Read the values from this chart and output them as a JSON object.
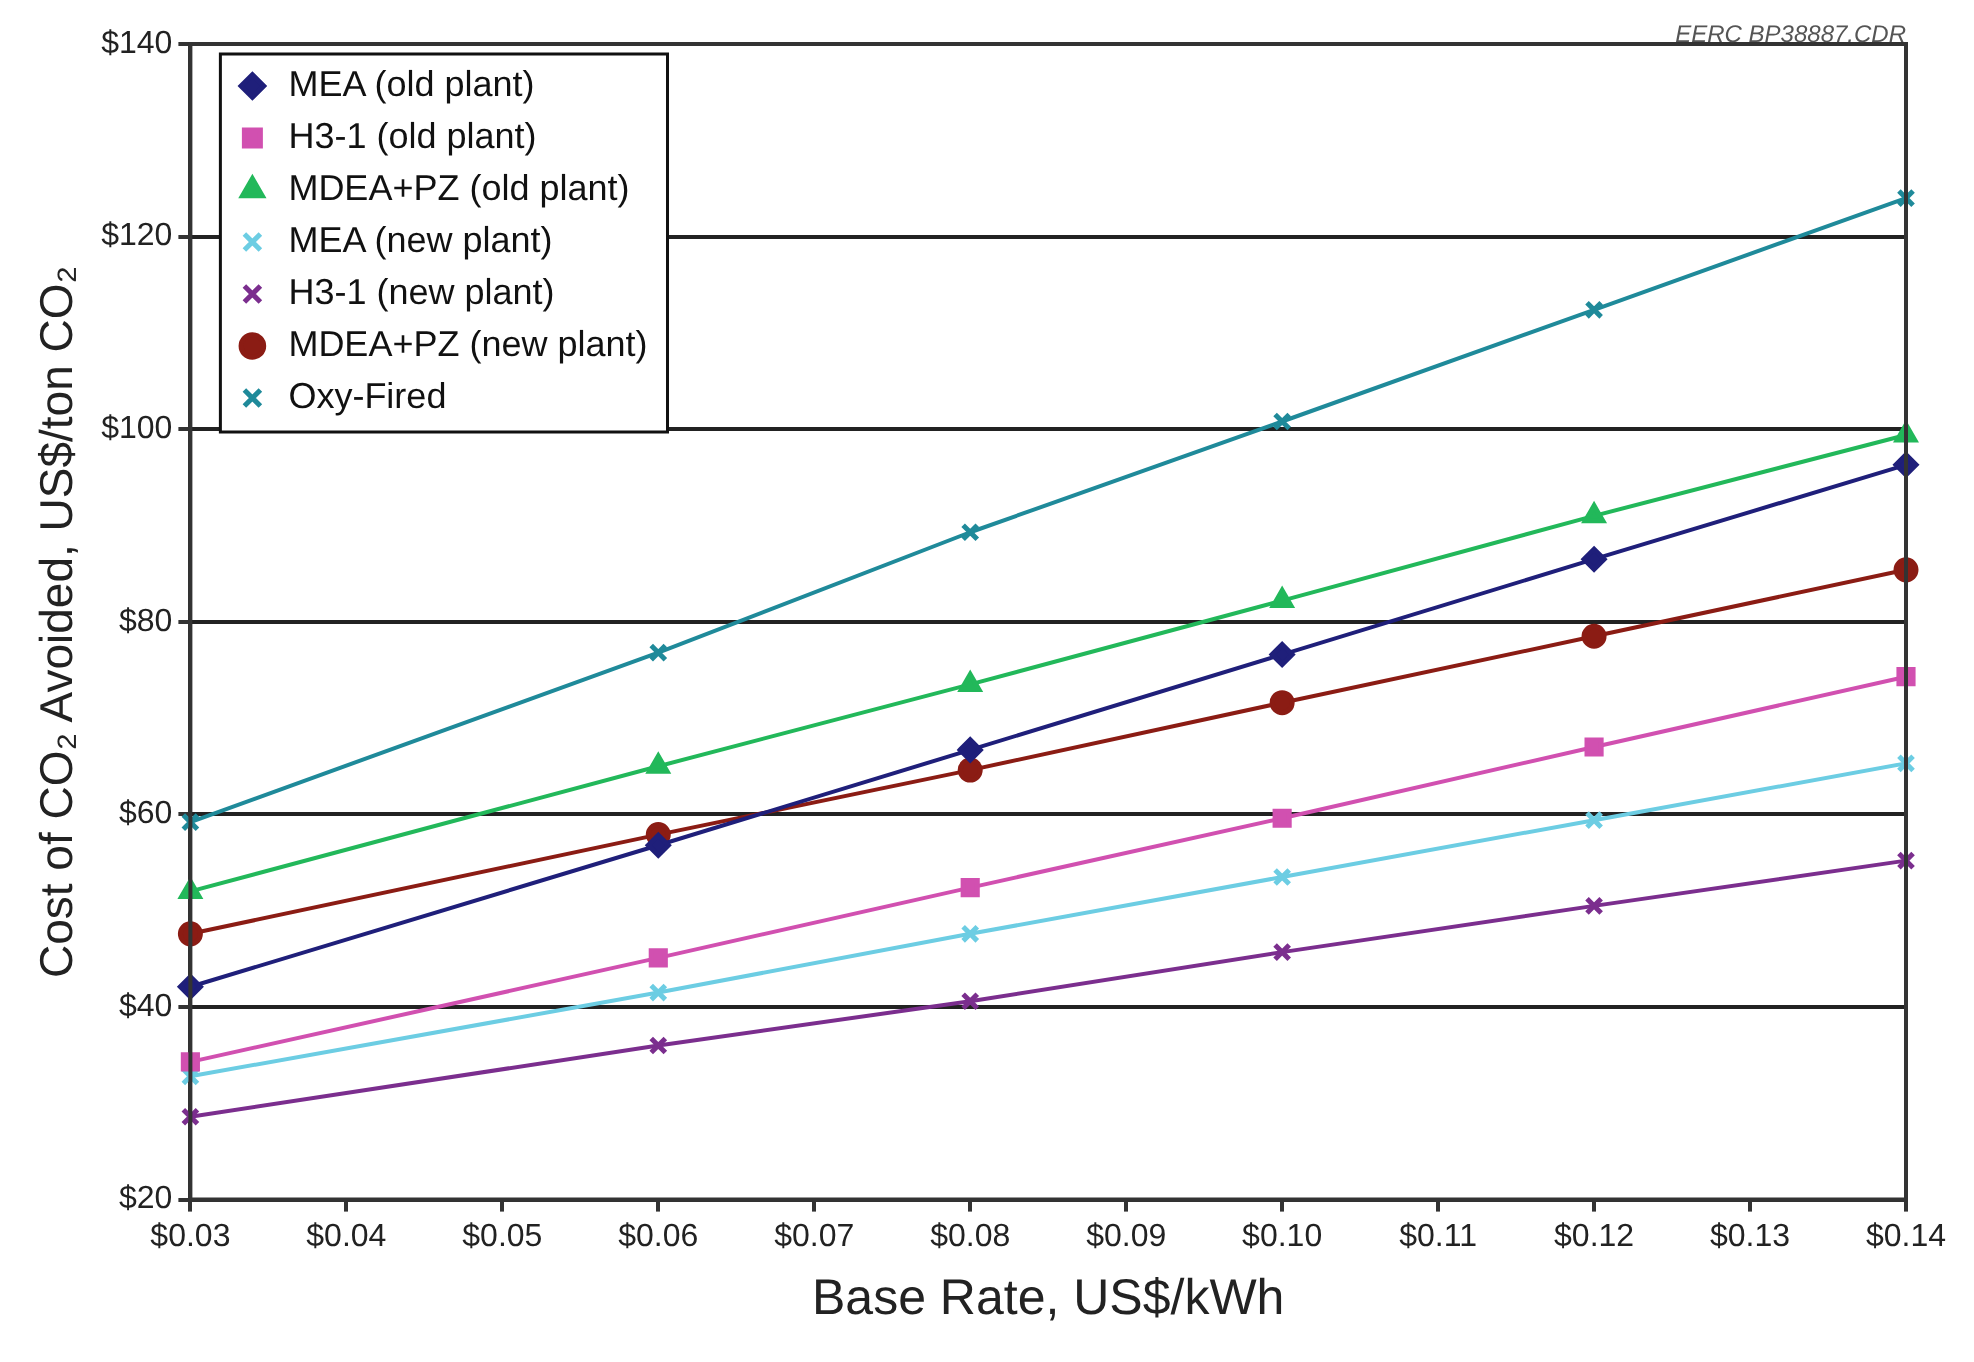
{
  "chart_data": {
    "type": "line",
    "xlabel": "Base Rate, US$/kWh",
    "ylabel": "Cost of CO₂ Avoided, US$/ton CO₂",
    "annotations": [
      "EERC BP38887.CDR"
    ],
    "x": [
      0.03,
      0.06,
      0.08,
      0.1,
      0.12,
      0.14
    ],
    "xlim": [
      0.03,
      0.14
    ],
    "xticks": [
      {
        "value": 0.03,
        "label": "$0.03"
      },
      {
        "value": 0.04,
        "label": "$0.04"
      },
      {
        "value": 0.05,
        "label": "$0.05"
      },
      {
        "value": 0.06,
        "label": "$0.06"
      },
      {
        "value": 0.07,
        "label": "$0.07"
      },
      {
        "value": 0.08,
        "label": "$0.08"
      },
      {
        "value": 0.09,
        "label": "$0.09"
      },
      {
        "value": 0.1,
        "label": "$0.10"
      },
      {
        "value": 0.11,
        "label": "$0.11"
      },
      {
        "value": 0.12,
        "label": "$0.12"
      },
      {
        "value": 0.13,
        "label": "$0.13"
      },
      {
        "value": 0.14,
        "label": "$0.14"
      }
    ],
    "ylim": [
      20,
      140
    ],
    "yticks": [
      {
        "value": 20,
        "label": "$20"
      },
      {
        "value": 40,
        "label": "$40"
      },
      {
        "value": 60,
        "label": "$60"
      },
      {
        "value": 80,
        "label": "$80"
      },
      {
        "value": 100,
        "label": "$100"
      },
      {
        "value": 120,
        "label": "$120"
      },
      {
        "value": 140,
        "label": "$140"
      }
    ],
    "grid": "y",
    "legend": "top left",
    "line_style": "solid",
    "series": [
      {
        "name": "MEA (old plant)",
        "color": "#1f1f7a",
        "marker": "diamond",
        "values": [
          42.1,
          56.8,
          66.7,
          76.6,
          86.5,
          96.3
        ]
      },
      {
        "name": "H3-1 (old plant)",
        "color": "#d150b0",
        "marker": "square",
        "values": [
          34.3,
          45.1,
          52.4,
          59.6,
          67,
          74.3
        ]
      },
      {
        "name": "MDEA+PZ (old plant)",
        "color": "#22b85a",
        "marker": "triangle",
        "values": [
          52,
          65,
          73.5,
          82.2,
          91,
          99.4
        ]
      },
      {
        "name": "MEA (new plant)",
        "color": "#6ccde3",
        "marker": "cross",
        "values": [
          32.8,
          41.5,
          47.6,
          53.5,
          59.4,
          65.3
        ]
      },
      {
        "name": "H3-1 (new plant)",
        "color": "#7b2e8e",
        "marker": "cross",
        "values": [
          28.6,
          36,
          40.6,
          45.7,
          50.5,
          55.2
        ]
      },
      {
        "name": "MDEA+PZ (new plant)",
        "color": "#8b1c14",
        "marker": "circle",
        "values": [
          47.6,
          57.9,
          64.6,
          71.6,
          78.5,
          85.4
        ]
      },
      {
        "name": "Oxy-Fired",
        "color": "#1f8a9a",
        "marker": "cross",
        "values": [
          59.2,
          76.8,
          89.3,
          100.8,
          112.4,
          124
        ]
      }
    ]
  }
}
